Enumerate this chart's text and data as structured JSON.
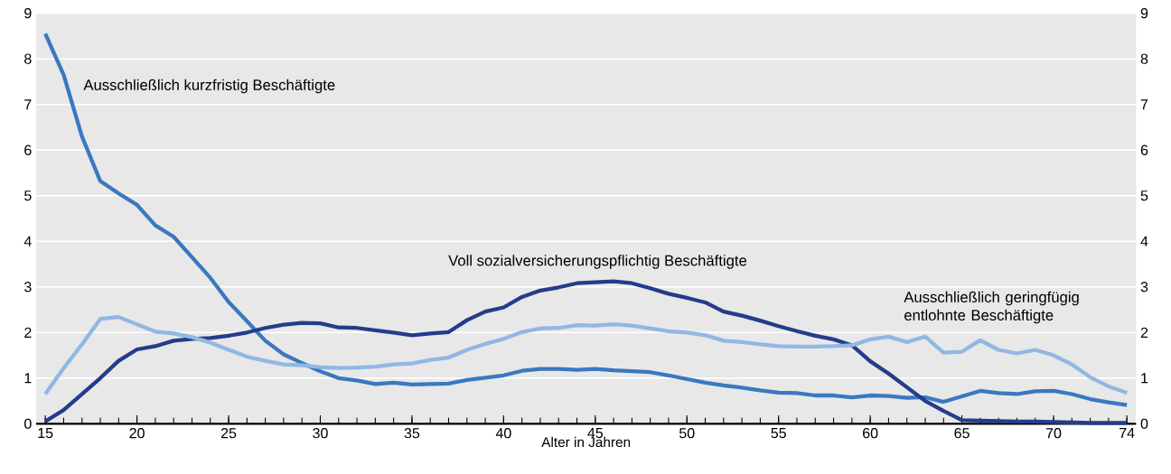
{
  "chart_data": {
    "type": "line",
    "xlabel": "Alter in Jahren",
    "x": [
      15,
      16,
      17,
      18,
      19,
      20,
      21,
      22,
      23,
      24,
      25,
      26,
      27,
      28,
      29,
      30,
      31,
      32,
      33,
      34,
      35,
      36,
      37,
      38,
      39,
      40,
      41,
      42,
      43,
      44,
      45,
      46,
      47,
      48,
      49,
      50,
      51,
      52,
      53,
      54,
      55,
      56,
      57,
      58,
      59,
      60,
      61,
      62,
      63,
      64,
      65,
      66,
      67,
      68,
      69,
      70,
      71,
      72,
      73,
      74
    ],
    "xlim": [
      14.5,
      74.5
    ],
    "xticks": [
      15,
      20,
      25,
      30,
      35,
      40,
      45,
      50,
      55,
      60,
      65,
      70,
      74
    ],
    "ylim": [
      0,
      9
    ],
    "yticks": [
      0,
      1,
      2,
      3,
      4,
      5,
      6,
      7,
      8,
      9
    ],
    "y2lim": [
      0,
      9
    ],
    "y2ticks": [
      0,
      1,
      2,
      3,
      4,
      5,
      6,
      7,
      8,
      9
    ],
    "grid": "y",
    "legend": false,
    "marker": "none",
    "line_style": "solid",
    "series": [
      {
        "name": "Ausschließlich kurzfristig Beschäftigte",
        "color": "#3a78c0",
        "values": [
          8.55,
          7.65,
          6.3,
          5.32,
          5.05,
          4.8,
          4.35,
          4.1,
          3.65,
          3.2,
          2.67,
          2.25,
          1.82,
          1.52,
          1.33,
          1.15,
          1.0,
          0.95,
          0.87,
          0.9,
          0.86,
          0.87,
          0.88,
          0.96,
          1.01,
          1.06,
          1.16,
          1.2,
          1.2,
          1.18,
          1.2,
          1.17,
          1.15,
          1.13,
          1.06,
          0.98,
          0.9,
          0.84,
          0.79,
          0.73,
          0.68,
          0.67,
          0.62,
          0.62,
          0.58,
          0.62,
          0.61,
          0.57,
          0.58,
          0.48,
          0.6,
          0.72,
          0.67,
          0.65,
          0.71,
          0.72,
          0.65,
          0.54,
          0.47,
          0.41
        ]
      },
      {
        "name": "Voll sozialversicherungspflichtig Beschäftigte",
        "color": "#253c8c",
        "values": [
          0.05,
          0.3,
          0.65,
          1.0,
          1.38,
          1.63,
          1.7,
          1.82,
          1.86,
          1.88,
          1.93,
          2.0,
          2.1,
          2.17,
          2.21,
          2.2,
          2.11,
          2.1,
          2.05,
          2.0,
          1.94,
          1.98,
          2.01,
          2.27,
          2.46,
          2.55,
          2.78,
          2.92,
          2.99,
          3.08,
          3.1,
          3.12,
          3.08,
          2.97,
          2.85,
          2.76,
          2.66,
          2.46,
          2.37,
          2.26,
          2.14,
          2.03,
          1.93,
          1.85,
          1.72,
          1.37,
          1.1,
          0.8,
          0.5,
          0.28,
          0.08,
          0.07,
          0.06,
          0.05,
          0.05,
          0.04,
          0.03,
          0.02,
          0.02,
          0.02
        ]
      },
      {
        "name": "Ausschließlich geringfügig entlohnte Beschäftigte",
        "color": "#8fb8e3",
        "values": [
          0.65,
          1.22,
          1.74,
          2.3,
          2.34,
          2.18,
          2.02,
          1.98,
          1.9,
          1.78,
          1.62,
          1.47,
          1.38,
          1.3,
          1.28,
          1.24,
          1.22,
          1.23,
          1.25,
          1.3,
          1.32,
          1.4,
          1.45,
          1.62,
          1.75,
          1.86,
          2.01,
          2.09,
          2.1,
          2.16,
          2.15,
          2.18,
          2.15,
          2.09,
          2.03,
          2.0,
          1.94,
          1.82,
          1.79,
          1.74,
          1.7,
          1.69,
          1.69,
          1.7,
          1.72,
          1.85,
          1.91,
          1.79,
          1.91,
          1.56,
          1.58,
          1.83,
          1.62,
          1.54,
          1.62,
          1.5,
          1.3,
          1.02,
          0.82,
          0.68
        ]
      }
    ]
  }
}
